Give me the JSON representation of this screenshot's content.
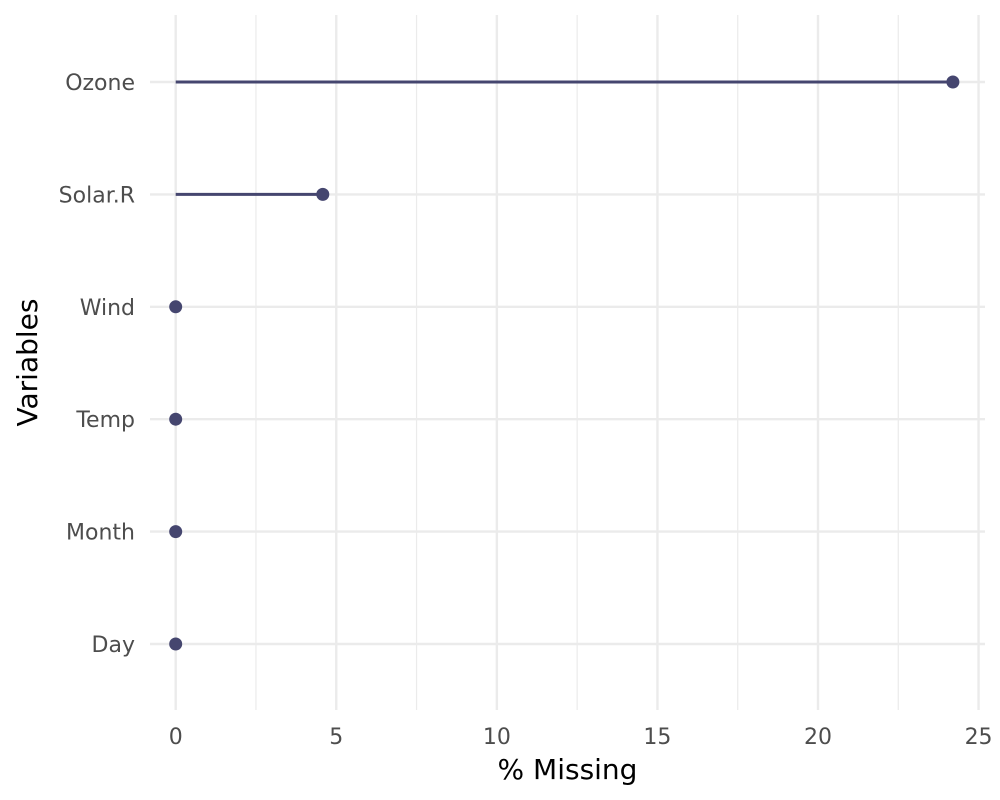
{
  "chart_data": {
    "type": "lollipop",
    "xlabel": "% Missing",
    "ylabel": "Variables",
    "xlim": [
      -0.8,
      25.2
    ],
    "x_ticks": [
      0,
      5,
      10,
      15,
      20,
      25
    ],
    "x_tick_labels": [
      "0",
      "5",
      "10",
      "15",
      "20",
      "25"
    ],
    "grid": true,
    "categories": [
      "Ozone",
      "Solar.R",
      "Wind",
      "Temp",
      "Month",
      "Day"
    ],
    "values": [
      24.2,
      4.58,
      0,
      0,
      0,
      0
    ],
    "color": "#45466f"
  }
}
